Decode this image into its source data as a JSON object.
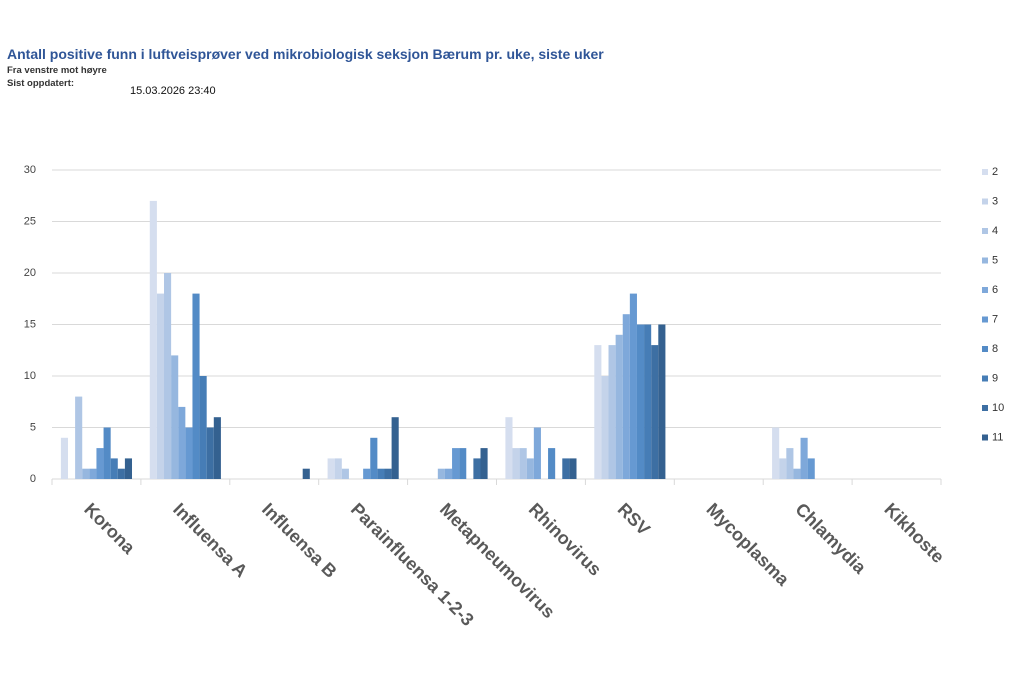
{
  "chart_data": {
    "type": "bar",
    "title": "Antall positive funn i luftveisprøver ved mikrobiologisk seksjon Bærum pr. uke, siste uker",
    "subtitle": "Fra venstre mot høyre",
    "updated_label": "Sist oppdatert:",
    "updated": "15.03.2026 23:40",
    "categories": [
      "Korona",
      "Influensa A",
      "Influensa B",
      "Parainfluensa 1-2-3",
      "Metapneumovirus",
      "Rhinovirus",
      "RSV",
      "Mycoplasma",
      "Chlamydia",
      "Kikhoste"
    ],
    "series": [
      {
        "name": "2",
        "color": "#d5deef",
        "values": [
          4,
          27,
          0,
          2,
          0,
          6,
          13,
          0,
          5,
          0
        ]
      },
      {
        "name": "3",
        "color": "#c4d3ea",
        "values": [
          0,
          18,
          0,
          2,
          0,
          3,
          10,
          0,
          2,
          0
        ]
      },
      {
        "name": "4",
        "color": "#afc6e5",
        "values": [
          8,
          20,
          0,
          1,
          0,
          3,
          13,
          0,
          3,
          0
        ]
      },
      {
        "name": "5",
        "color": "#96b7df",
        "values": [
          1,
          12,
          0,
          0,
          1,
          2,
          14,
          0,
          1,
          0
        ]
      },
      {
        "name": "6",
        "color": "#7ea8da",
        "values": [
          1,
          7,
          0,
          0,
          1,
          5,
          16,
          0,
          4,
          0
        ]
      },
      {
        "name": "7",
        "color": "#6699d2",
        "values": [
          3,
          5,
          0,
          1,
          3,
          0,
          18,
          0,
          2,
          0
        ]
      },
      {
        "name": "8",
        "color": "#538bc6",
        "values": [
          5,
          18,
          0,
          4,
          3,
          3,
          15,
          0,
          0,
          0
        ]
      },
      {
        "name": "9",
        "color": "#467db6",
        "values": [
          2,
          10,
          0,
          1,
          0,
          0,
          15,
          0,
          0,
          0
        ]
      },
      {
        "name": "10",
        "color": "#3d6fa3",
        "values": [
          1,
          5,
          0,
          1,
          2,
          2,
          13,
          0,
          0,
          0
        ]
      },
      {
        "name": "11",
        "color": "#346190",
        "values": [
          2,
          6,
          1,
          6,
          3,
          2,
          15,
          0,
          0,
          0
        ]
      }
    ],
    "ylim": [
      0,
      30
    ],
    "yticks": [
      0,
      5,
      10,
      15,
      20,
      25,
      30
    ],
    "grid": true,
    "legend": "right"
  }
}
